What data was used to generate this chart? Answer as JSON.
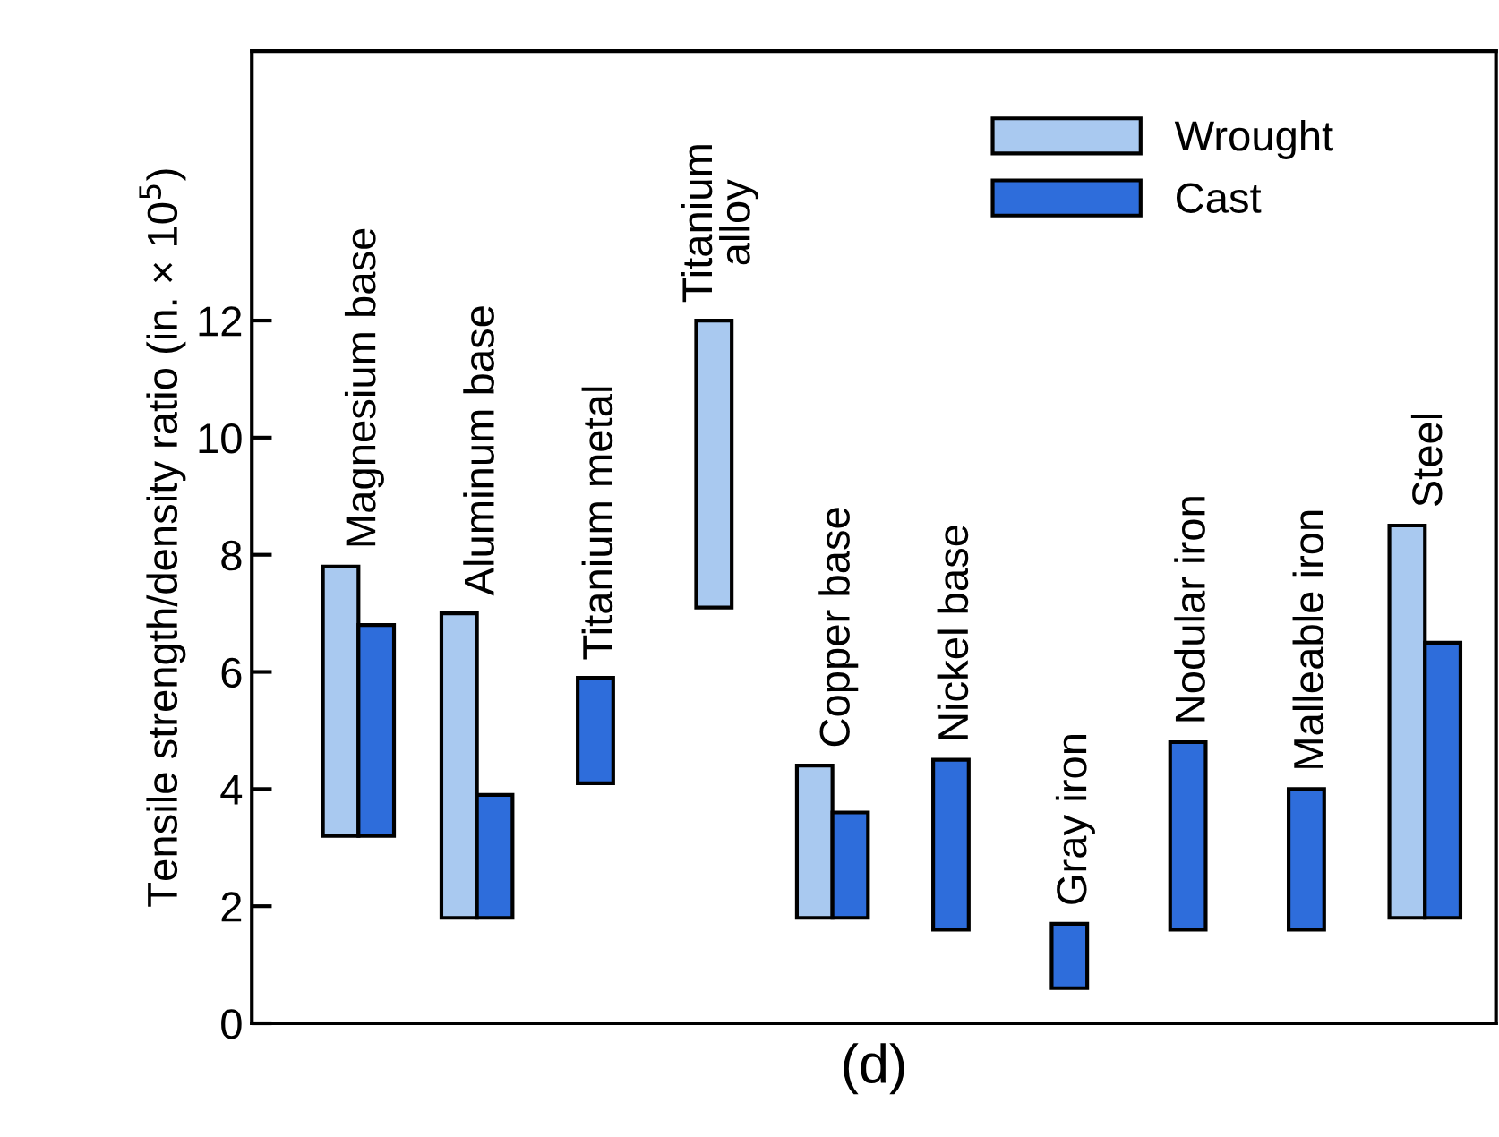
{
  "chart_data": {
    "type": "bar",
    "xlabel": "(d)",
    "ylabel": "Tensile strength/density ratio (in. × 10$^{5}$)",
    "categories": [
      "Magnesium base",
      "Aluminum base",
      "Titanium metal",
      "Titanium\nalloy",
      "Copper base",
      "Nickel base",
      "Gray iron",
      "Nodular iron",
      "Malleable iron",
      "Steel"
    ],
    "series": [
      {
        "name": "Wrought",
        "color": "#a9c9f0",
        "base": [
          3.2,
          1.8,
          null,
          7.1,
          1.8,
          null,
          null,
          null,
          null,
          1.8
        ],
        "values": [
          4.6,
          5.2,
          null,
          4.9,
          2.6,
          null,
          null,
          null,
          null,
          6.7
        ]
      },
      {
        "name": "Cast",
        "color": "#2e6ddb",
        "base": [
          3.2,
          1.8,
          4.1,
          null,
          1.8,
          1.6,
          0.6,
          1.6,
          1.6,
          1.8
        ],
        "values": [
          3.6,
          2.1,
          1.8,
          null,
          1.8,
          2.9,
          1.1,
          3.2,
          2.4,
          4.7
        ]
      }
    ],
    "ylim": [
      0,
      16.6
    ],
    "yticks": [
      0,
      2,
      4,
      6,
      8,
      10,
      12
    ],
    "legend": "top right",
    "grid": false
  }
}
